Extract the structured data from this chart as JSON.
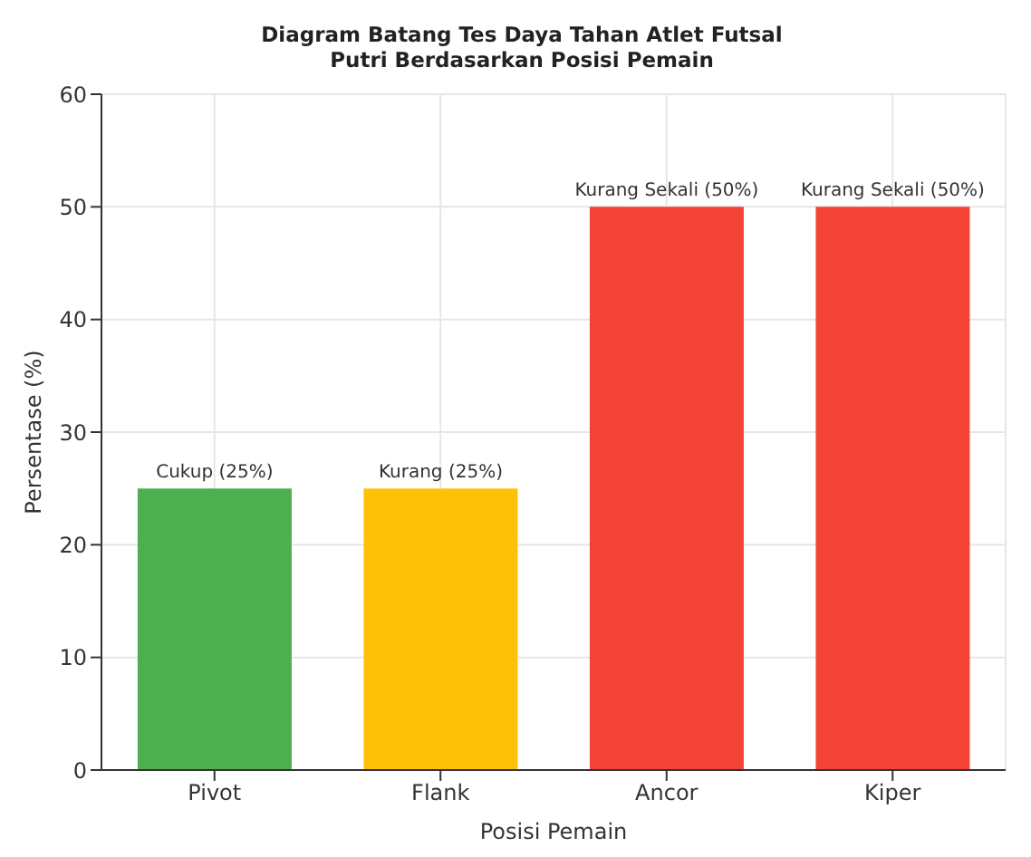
{
  "chart_data": {
    "type": "bar",
    "title": "Diagram Batang Tes Daya Tahan Atlet Futsal Putri Berdasarkan Posisi Pemain",
    "xlabel": "Posisi Pemain",
    "ylabel": "Persentase (%)",
    "categories": [
      "Pivot",
      "Flank",
      "Ancor",
      "Kiper"
    ],
    "values": [
      25,
      25,
      50,
      50
    ],
    "colors": [
      "#4caf50",
      "#ffc107",
      "#f44336",
      "#f44336"
    ],
    "value_labels": [
      "Cukup (25%)",
      "Kurang (25%)",
      "Kurang Sekali (50%)",
      "Kurang Sekali (50%)"
    ],
    "ylim": [
      0,
      60
    ],
    "yticks": [
      0,
      10,
      20,
      30,
      40,
      50,
      60
    ],
    "grid": true
  }
}
